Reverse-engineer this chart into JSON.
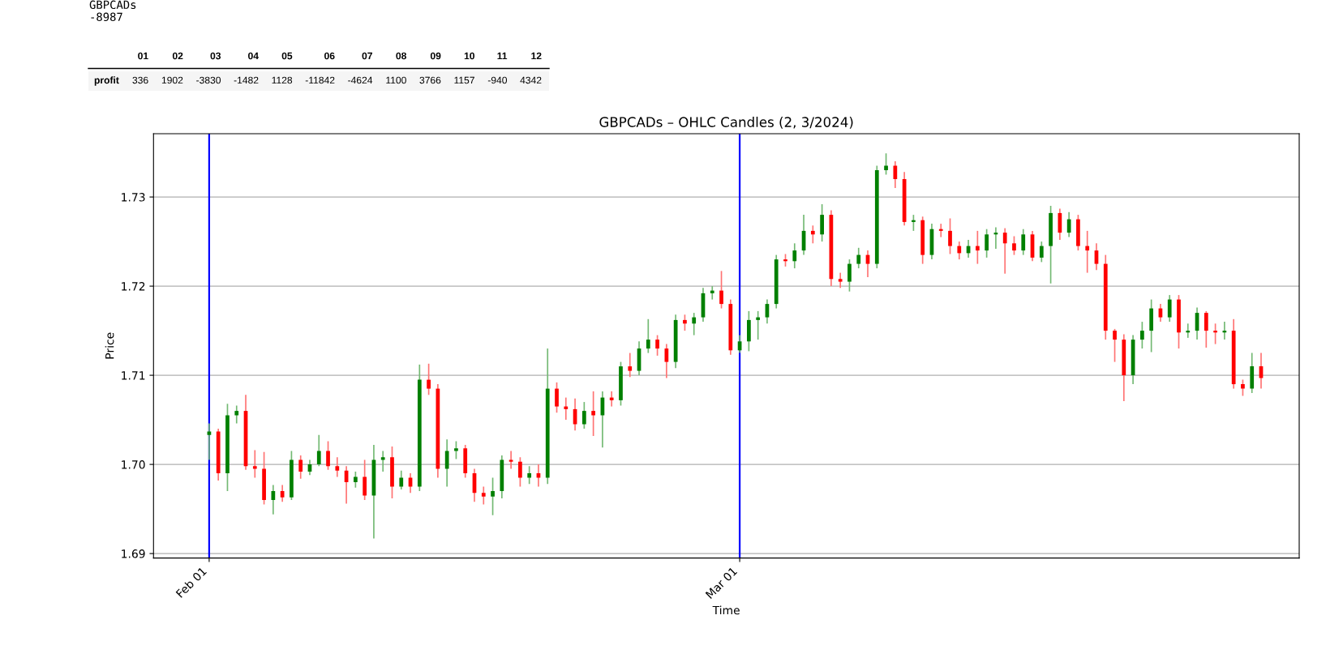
{
  "chart_data": [
    {
      "type": "other",
      "annotations": [
        "GBPCADs",
        "-8987",
        "01",
        "02",
        "03",
        "04",
        "05",
        "06",
        "07",
        "08",
        "09",
        "10",
        "11",
        "12",
        "profit",
        "336",
        "1902",
        "-3830",
        "-1482",
        "1128",
        "-11842",
        "-4624",
        "1100",
        "3766",
        "1157",
        "-940",
        "4342"
      ]
    },
    {
      "type": "candlestick",
      "title": "GBPCADs – OHLC Candles (2, 3/2024)",
      "xlabel": "Time",
      "ylabel": "Price",
      "x": [
        "2024-02-01T00:00",
        "2024-02-01T12:00",
        "2024-02-02T00:00",
        "2024-02-02T12:00",
        "2024-02-03T00:00",
        "2024-02-03T12:00",
        "2024-02-04T00:00",
        "2024-02-04T12:00",
        "2024-02-05T00:00",
        "2024-02-05T12:00",
        "2024-02-06T00:00",
        "2024-02-06T12:00",
        "2024-02-07T00:00",
        "2024-02-07T12:00",
        "2024-02-08T00:00",
        "2024-02-08T12:00",
        "2024-02-09T00:00",
        "2024-02-09T12:00",
        "2024-02-10T00:00",
        "2024-02-10T12:00",
        "2024-02-11T00:00",
        "2024-02-11T12:00",
        "2024-02-12T00:00",
        "2024-02-12T12:00",
        "2024-02-13T00:00",
        "2024-02-13T12:00",
        "2024-02-14T00:00",
        "2024-02-14T12:00",
        "2024-02-15T00:00",
        "2024-02-15T12:00",
        "2024-02-16T00:00",
        "2024-02-16T12:00",
        "2024-02-17T00:00",
        "2024-02-17T12:00",
        "2024-02-18T00:00",
        "2024-02-18T12:00",
        "2024-02-19T00:00",
        "2024-02-19T12:00",
        "2024-02-20T00:00",
        "2024-02-20T12:00",
        "2024-02-21T00:00",
        "2024-02-21T12:00",
        "2024-02-22T00:00",
        "2024-02-22T12:00",
        "2024-02-23T00:00",
        "2024-02-23T12:00",
        "2024-02-24T00:00",
        "2024-02-24T12:00",
        "2024-02-25T00:00",
        "2024-02-25T12:00",
        "2024-02-26T00:00",
        "2024-02-26T12:00",
        "2024-02-27T00:00",
        "2024-02-27T12:00",
        "2024-02-28T00:00",
        "2024-02-28T12:00",
        "2024-02-29T00:00",
        "2024-02-29T12:00",
        "2024-03-01T00:00",
        "2024-03-01T12:00",
        "2024-03-02T00:00",
        "2024-03-02T12:00",
        "2024-03-03T00:00",
        "2024-03-03T12:00",
        "2024-03-04T00:00",
        "2024-03-04T12:00",
        "2024-03-05T00:00",
        "2024-03-05T12:00",
        "2024-03-06T00:00",
        "2024-03-06T12:00",
        "2024-03-07T00:00",
        "2024-03-07T12:00",
        "2024-03-08T00:00",
        "2024-03-08T12:00",
        "2024-03-09T00:00",
        "2024-03-09T12:00",
        "2024-03-10T00:00",
        "2024-03-10T12:00",
        "2024-03-11T00:00",
        "2024-03-11T12:00",
        "2024-03-12T00:00",
        "2024-03-12T12:00",
        "2024-03-13T00:00",
        "2024-03-13T12:00",
        "2024-03-14T00:00",
        "2024-03-14T12:00",
        "2024-03-15T00:00",
        "2024-03-15T12:00",
        "2024-03-16T00:00",
        "2024-03-16T12:00",
        "2024-03-17T00:00",
        "2024-03-17T12:00",
        "2024-03-18T00:00",
        "2024-03-18T12:00",
        "2024-03-19T00:00",
        "2024-03-19T12:00",
        "2024-03-20T00:00",
        "2024-03-20T12:00",
        "2024-03-21T00:00",
        "2024-03-21T12:00",
        "2024-03-22T00:00",
        "2024-03-22T12:00",
        "2024-03-23T00:00",
        "2024-03-23T12:00",
        "2024-03-24T00:00",
        "2024-03-24T12:00",
        "2024-03-25T00:00",
        "2024-03-25T12:00",
        "2024-03-26T00:00",
        "2024-03-26T12:00",
        "2024-03-27T00:00",
        "2024-03-27T12:00",
        "2024-03-28T00:00",
        "2024-03-28T12:00",
        "2024-03-29T00:00",
        "2024-03-29T12:00"
      ],
      "ohlc": [
        [
          1.7033,
          1.7046,
          1.7005,
          1.7037
        ],
        [
          1.7037,
          1.704,
          1.6982,
          1.699
        ],
        [
          1.699,
          1.7068,
          1.697,
          1.7055
        ],
        [
          1.7055,
          1.7066,
          1.7046,
          1.706
        ],
        [
          1.706,
          1.7078,
          1.6994,
          1.6998
        ],
        [
          1.6998,
          1.7016,
          1.6985,
          1.6995
        ],
        [
          1.6995,
          1.7014,
          1.6955,
          1.696
        ],
        [
          1.696,
          1.6977,
          1.6944,
          1.697
        ],
        [
          1.697,
          1.6977,
          1.6958,
          1.6963
        ],
        [
          1.6963,
          1.7015,
          1.696,
          1.7005
        ],
        [
          1.7005,
          1.701,
          1.6984,
          1.6992
        ],
        [
          1.6992,
          1.7005,
          1.6988,
          1.7
        ],
        [
          1.7,
          1.7033,
          1.6998,
          1.7015
        ],
        [
          1.7015,
          1.7026,
          1.6994,
          1.6998
        ],
        [
          1.6998,
          1.7008,
          1.6986,
          1.6993
        ],
        [
          1.6993,
          1.6998,
          1.6956,
          1.698
        ],
        [
          1.698,
          1.6992,
          1.6974,
          1.6986
        ],
        [
          1.6986,
          1.7005,
          1.696,
          1.6965
        ],
        [
          1.6965,
          1.7022,
          1.6917,
          1.7005
        ],
        [
          1.7005,
          1.7015,
          1.6992,
          1.7008
        ],
        [
          1.7008,
          1.702,
          1.6962,
          1.6975
        ],
        [
          1.6975,
          1.6993,
          1.6972,
          1.6985
        ],
        [
          1.6985,
          1.699,
          1.6968,
          1.6975
        ],
        [
          1.6975,
          1.7112,
          1.697,
          1.7095
        ],
        [
          1.7095,
          1.7113,
          1.7078,
          1.7085
        ],
        [
          1.7085,
          1.709,
          1.6985,
          1.6995
        ],
        [
          1.6995,
          1.7028,
          1.6975,
          1.7015
        ],
        [
          1.7015,
          1.7026,
          1.7006,
          1.7018
        ],
        [
          1.7018,
          1.7022,
          1.6985,
          1.699
        ],
        [
          1.699,
          1.6995,
          1.6958,
          1.6968
        ],
        [
          1.6968,
          1.6975,
          1.6955,
          1.6964
        ],
        [
          1.6964,
          1.6985,
          1.6943,
          1.697
        ],
        [
          1.697,
          1.701,
          1.6962,
          1.7005
        ],
        [
          1.7005,
          1.7015,
          1.6995,
          1.7003
        ],
        [
          1.7003,
          1.7008,
          1.6975,
          1.6985
        ],
        [
          1.6985,
          1.6998,
          1.6978,
          1.699
        ],
        [
          1.699,
          1.7,
          1.6975,
          1.6985
        ],
        [
          1.6985,
          1.713,
          1.6978,
          1.7085
        ],
        [
          1.7085,
          1.7092,
          1.7058,
          1.7065
        ],
        [
          1.7065,
          1.7075,
          1.705,
          1.7062
        ],
        [
          1.7062,
          1.7074,
          1.7038,
          1.7045
        ],
        [
          1.7045,
          1.707,
          1.704,
          1.706
        ],
        [
          1.706,
          1.7082,
          1.7032,
          1.7055
        ],
        [
          1.7055,
          1.7082,
          1.7019,
          1.7075
        ],
        [
          1.7075,
          1.7082,
          1.7065,
          1.7072
        ],
        [
          1.7072,
          1.7115,
          1.7066,
          1.711
        ],
        [
          1.711,
          1.7125,
          1.7098,
          1.7105
        ],
        [
          1.7105,
          1.7138,
          1.71,
          1.713
        ],
        [
          1.713,
          1.7163,
          1.7125,
          1.714
        ],
        [
          1.714,
          1.7145,
          1.7122,
          1.713
        ],
        [
          1.713,
          1.7135,
          1.7097,
          1.7115
        ],
        [
          1.7115,
          1.7168,
          1.7108,
          1.7162
        ],
        [
          1.7162,
          1.7168,
          1.715,
          1.7158
        ],
        [
          1.7158,
          1.717,
          1.7145,
          1.7165
        ],
        [
          1.7165,
          1.7198,
          1.716,
          1.7192
        ],
        [
          1.7192,
          1.72,
          1.7185,
          1.7195
        ],
        [
          1.7195,
          1.7217,
          1.7175,
          1.718
        ],
        [
          1.718,
          1.7185,
          1.7123,
          1.7128
        ],
        [
          1.7128,
          1.7145,
          1.7125,
          1.7138
        ],
        [
          1.7138,
          1.7172,
          1.7127,
          1.7162
        ],
        [
          1.7162,
          1.7172,
          1.714,
          1.7165
        ],
        [
          1.7165,
          1.7185,
          1.7158,
          1.718
        ],
        [
          1.718,
          1.7235,
          1.7175,
          1.723
        ],
        [
          1.723,
          1.7236,
          1.7222,
          1.7228
        ],
        [
          1.7228,
          1.7248,
          1.722,
          1.724
        ],
        [
          1.724,
          1.728,
          1.7235,
          1.7262
        ],
        [
          1.7262,
          1.7268,
          1.7248,
          1.7258
        ],
        [
          1.7258,
          1.7292,
          1.725,
          1.728
        ],
        [
          1.728,
          1.7285,
          1.72,
          1.7208
        ],
        [
          1.7208,
          1.7215,
          1.7198,
          1.7205
        ],
        [
          1.7205,
          1.723,
          1.7194,
          1.7225
        ],
        [
          1.7225,
          1.7243,
          1.722,
          1.7235
        ],
        [
          1.7235,
          1.724,
          1.721,
          1.7225
        ],
        [
          1.7225,
          1.7335,
          1.722,
          1.733
        ],
        [
          1.733,
          1.7349,
          1.7325,
          1.7335
        ],
        [
          1.7335,
          1.734,
          1.731,
          1.732
        ],
        [
          1.732,
          1.7328,
          1.7268,
          1.7272
        ],
        [
          1.7272,
          1.728,
          1.7262,
          1.7274
        ],
        [
          1.7274,
          1.7278,
          1.7225,
          1.7235
        ],
        [
          1.7235,
          1.727,
          1.723,
          1.7264
        ],
        [
          1.7264,
          1.727,
          1.7255,
          1.7262
        ],
        [
          1.7262,
          1.7276,
          1.7236,
          1.7245
        ],
        [
          1.7245,
          1.725,
          1.723,
          1.7237
        ],
        [
          1.7237,
          1.7252,
          1.7232,
          1.7245
        ],
        [
          1.7245,
          1.7262,
          1.7225,
          1.724
        ],
        [
          1.724,
          1.7264,
          1.7232,
          1.7258
        ],
        [
          1.7258,
          1.7266,
          1.7242,
          1.726
        ],
        [
          1.726,
          1.7265,
          1.7214,
          1.7248
        ],
        [
          1.7248,
          1.7256,
          1.7235,
          1.724
        ],
        [
          1.724,
          1.7264,
          1.7235,
          1.7258
        ],
        [
          1.7258,
          1.7262,
          1.7228,
          1.7232
        ],
        [
          1.7232,
          1.725,
          1.7227,
          1.7245
        ],
        [
          1.7245,
          1.729,
          1.7203,
          1.7282
        ],
        [
          1.7282,
          1.7287,
          1.7252,
          1.726
        ],
        [
          1.726,
          1.7283,
          1.7255,
          1.7275
        ],
        [
          1.7275,
          1.728,
          1.724,
          1.7245
        ],
        [
          1.7245,
          1.7262,
          1.7215,
          1.724
        ],
        [
          1.724,
          1.7248,
          1.7218,
          1.7225
        ],
        [
          1.7225,
          1.7235,
          1.714,
          1.715
        ],
        [
          1.715,
          1.7152,
          1.7115,
          1.714
        ],
        [
          1.714,
          1.7146,
          1.7071,
          1.71
        ],
        [
          1.71,
          1.7145,
          1.709,
          1.714
        ],
        [
          1.714,
          1.716,
          1.713,
          1.715
        ],
        [
          1.715,
          1.7185,
          1.7126,
          1.7175
        ],
        [
          1.7175,
          1.718,
          1.716,
          1.7165
        ],
        [
          1.7165,
          1.719,
          1.716,
          1.7185
        ],
        [
          1.7185,
          1.719,
          1.713,
          1.7148
        ],
        [
          1.7148,
          1.7158,
          1.7142,
          1.715
        ],
        [
          1.715,
          1.7176,
          1.714,
          1.717
        ],
        [
          1.717,
          1.7172,
          1.7131,
          1.715
        ],
        [
          1.715,
          1.7158,
          1.7135,
          1.7148
        ],
        [
          1.7148,
          1.716,
          1.714,
          1.715
        ],
        [
          1.715,
          1.7163,
          1.7085,
          1.709
        ],
        [
          1.709,
          1.7095,
          1.7077,
          1.7085
        ],
        [
          1.7085,
          1.7125,
          1.708,
          1.711
        ],
        [
          1.711,
          1.7125,
          1.7085,
          1.7097
        ]
      ],
      "colors": [
        "#008000",
        "#ff0000",
        "#008000",
        "#008000",
        "#ff0000",
        "#ff0000",
        "#ff0000",
        "#008000",
        "#ff0000",
        "#008000",
        "#ff0000",
        "#008000",
        "#008000",
        "#ff0000",
        "#ff0000",
        "#ff0000",
        "#008000",
        "#ff0000",
        "#008000",
        "#008000",
        "#ff0000",
        "#008000",
        "#ff0000",
        "#008000",
        "#ff0000",
        "#ff0000",
        "#008000",
        "#008000",
        "#ff0000",
        "#ff0000",
        "#ff0000",
        "#008000",
        "#008000",
        "#ff0000",
        "#ff0000",
        "#008000",
        "#ff0000",
        "#008000",
        "#ff0000",
        "#ff0000",
        "#ff0000",
        "#008000",
        "#ff0000",
        "#008000",
        "#ff0000",
        "#008000",
        "#ff0000",
        "#008000",
        "#008000",
        "#ff0000",
        "#ff0000",
        "#008000",
        "#ff0000",
        "#008000",
        "#008000",
        "#008000",
        "#ff0000",
        "#ff0000",
        "#008000",
        "#008000",
        "#008000",
        "#008000",
        "#008000",
        "#ff0000",
        "#008000",
        "#008000",
        "#ff0000",
        "#008000",
        "#ff0000",
        "#ff0000",
        "#008000",
        "#008000",
        "#ff0000",
        "#008000",
        "#008000",
        "#ff0000",
        "#ff0000",
        "#008000",
        "#ff0000",
        "#008000",
        "#ff0000",
        "#ff0000",
        "#ff0000",
        "#008000",
        "#ff0000",
        "#008000",
        "#008000",
        "#ff0000",
        "#ff0000",
        "#008000",
        "#ff0000",
        "#008000",
        "#008000",
        "#ff0000",
        "#008000",
        "#ff0000",
        "#ff0000",
        "#ff0000",
        "#ff0000",
        "#ff0000",
        "#ff0000",
        "#008000",
        "#008000",
        "#008000",
        "#ff0000",
        "#008000",
        "#ff0000",
        "#008000",
        "#008000",
        "#ff0000",
        "#ff0000",
        "#008000",
        "#ff0000",
        "#ff0000",
        "#008000",
        "#ff0000"
      ],
      "xlim": [
        "2024-01-28T23:00",
        "2024-03-31T14:00"
      ],
      "ylim": [
        1.6895,
        1.7371
      ],
      "xticks": [
        {
          "value": "2024-02-01",
          "label": "Feb 01"
        },
        {
          "value": "2024-03-01",
          "label": "Mar 01"
        }
      ],
      "yticks": [
        1.69,
        {
          "value": 1.7,
          "label": "1.70"
        },
        1.71,
        1.72,
        1.73
      ],
      "grid": "y",
      "ref_lines": [
        {
          "axis": "x",
          "value": "2024-02-01",
          "color": "#0000ff"
        },
        {
          "axis": "x",
          "value": "2024-03-01",
          "color": "#0000ff"
        }
      ]
    }
  ]
}
